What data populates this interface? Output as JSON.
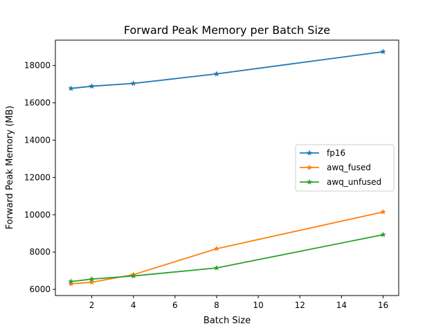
{
  "chart_data": {
    "type": "line",
    "title": "Forward Peak Memory per Batch Size",
    "xlabel": "Batch Size",
    "ylabel": "Forward Peak Memory (MB)",
    "xlim": [
      0.25,
      16.75
    ],
    "ylim": [
      5670,
      19360
    ],
    "xticks": [
      2,
      4,
      6,
      8,
      10,
      12,
      14,
      16
    ],
    "yticks": [
      6000,
      8000,
      10000,
      12000,
      14000,
      16000,
      18000
    ],
    "grid": false,
    "legend_position": "center-right",
    "marker": "star",
    "x": [
      1,
      2,
      4,
      8,
      16
    ],
    "series": [
      {
        "name": "fp16",
        "color": "#1f77b4",
        "values": [
          16770,
          16890,
          17040,
          17550,
          18740
        ]
      },
      {
        "name": "awq_fused",
        "color": "#ff7f0e",
        "values": [
          6300,
          6380,
          6790,
          8180,
          10150
        ]
      },
      {
        "name": "awq_unfused",
        "color": "#2ca02c",
        "values": [
          6420,
          6550,
          6720,
          7150,
          8930
        ]
      }
    ]
  }
}
